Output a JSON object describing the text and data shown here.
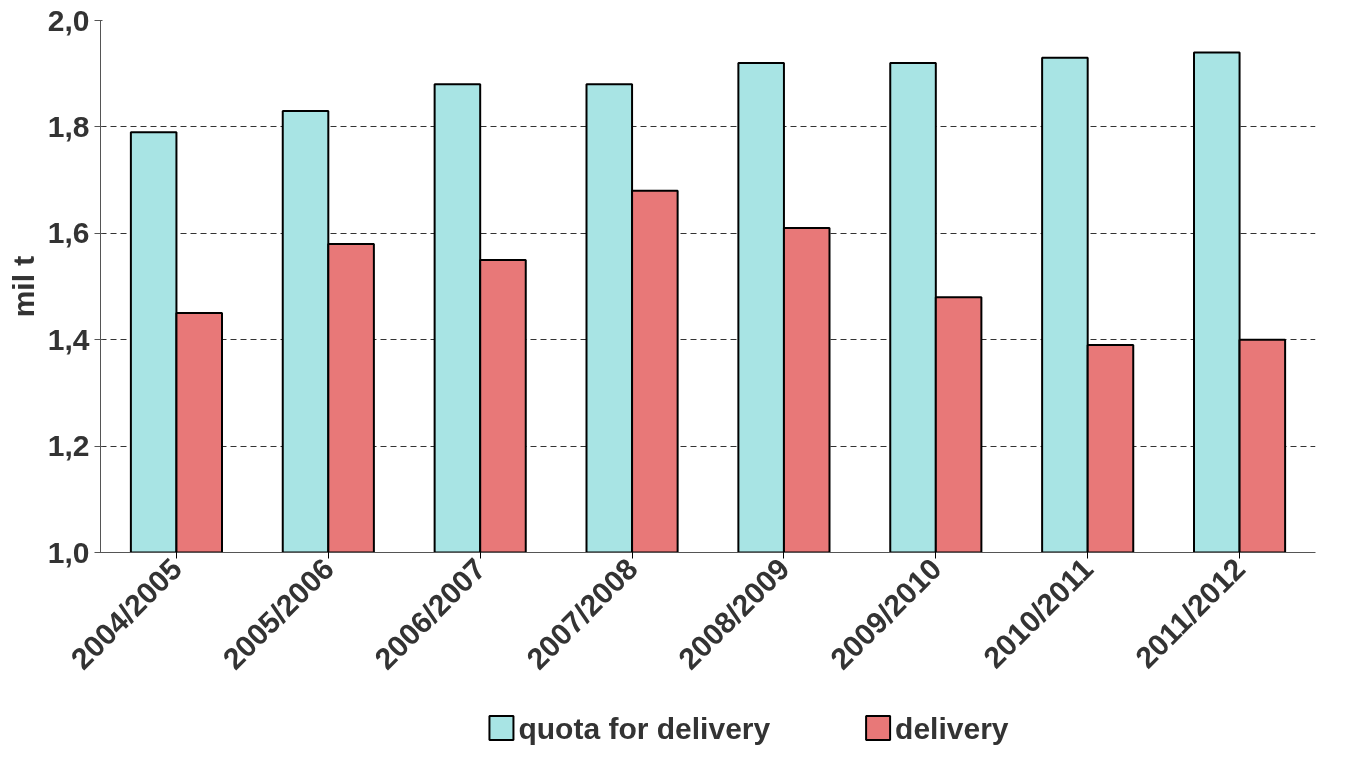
{
  "chart_data": {
    "type": "bar",
    "ylabel": "mil t",
    "categories": [
      "2004/2005",
      "2005/2006",
      "2006/2007",
      "2007/2008",
      "2008/2009",
      "2009/2010",
      "2010/2011",
      "2011/2012"
    ],
    "series": [
      {
        "name": "quota for delivery",
        "color": "#a8e4e4",
        "values": [
          1.79,
          1.83,
          1.88,
          1.88,
          1.92,
          1.92,
          1.93,
          1.94
        ]
      },
      {
        "name": "delivery",
        "color": "#e87878",
        "values": [
          1.45,
          1.58,
          1.55,
          1.68,
          1.61,
          1.48,
          1.39,
          1.4
        ]
      }
    ],
    "ylim": [
      1.0,
      2.0
    ],
    "yticks": [
      {
        "value": 1.0,
        "label": "1,0"
      },
      {
        "value": 1.2,
        "label": "1,2"
      },
      {
        "value": 1.4,
        "label": "1,4"
      },
      {
        "value": 1.6,
        "label": "1,6"
      },
      {
        "value": 1.8,
        "label": "1,8"
      },
      {
        "value": 2.0,
        "label": "2,0"
      }
    ],
    "grid": "y",
    "legend": "bottom"
  }
}
